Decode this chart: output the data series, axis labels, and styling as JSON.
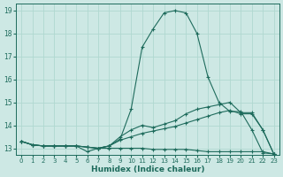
{
  "xlabel": "Humidex (Indice chaleur)",
  "x": [
    0,
    1,
    2,
    3,
    4,
    5,
    6,
    7,
    8,
    9,
    10,
    11,
    12,
    13,
    14,
    15,
    16,
    17,
    18,
    19,
    20,
    21,
    22,
    23
  ],
  "line_peak": [
    13.3,
    13.15,
    13.1,
    13.1,
    13.1,
    13.1,
    13.05,
    13.0,
    13.1,
    13.4,
    14.7,
    17.4,
    18.2,
    18.9,
    19.0,
    18.9,
    18.0,
    16.1,
    15.0,
    14.6,
    14.6,
    13.8,
    12.8,
    12.75
  ],
  "line_upper": [
    13.3,
    13.15,
    13.1,
    13.1,
    13.1,
    13.1,
    13.05,
    13.0,
    13.1,
    13.5,
    13.8,
    14.0,
    13.9,
    14.05,
    14.2,
    14.5,
    14.7,
    14.8,
    14.9,
    15.0,
    14.55,
    14.55,
    13.8,
    12.75
  ],
  "line_mid": [
    13.3,
    13.15,
    13.1,
    13.1,
    13.1,
    13.1,
    13.05,
    13.0,
    13.1,
    13.35,
    13.5,
    13.65,
    13.75,
    13.85,
    13.95,
    14.1,
    14.25,
    14.4,
    14.55,
    14.65,
    14.5,
    14.5,
    13.8,
    12.75
  ],
  "line_flat": [
    13.3,
    13.15,
    13.1,
    13.1,
    13.1,
    13.1,
    12.85,
    13.0,
    13.0,
    13.0,
    13.0,
    13.0,
    12.95,
    12.95,
    12.95,
    12.95,
    12.9,
    12.85,
    12.85,
    12.85,
    12.85,
    12.85,
    12.85,
    12.75
  ],
  "bg_color": "#cde8e4",
  "line_color": "#1e6b5c",
  "grid_color": "#b0d8d0",
  "ylim": [
    12.7,
    19.3
  ],
  "xlim": [
    -0.5,
    23.5
  ],
  "yticks": [
    13,
    14,
    15,
    16,
    17,
    18,
    19
  ],
  "xticks": [
    0,
    1,
    2,
    3,
    4,
    5,
    6,
    7,
    8,
    9,
    10,
    11,
    12,
    13,
    14,
    15,
    16,
    17,
    18,
    19,
    20,
    21,
    22,
    23
  ]
}
